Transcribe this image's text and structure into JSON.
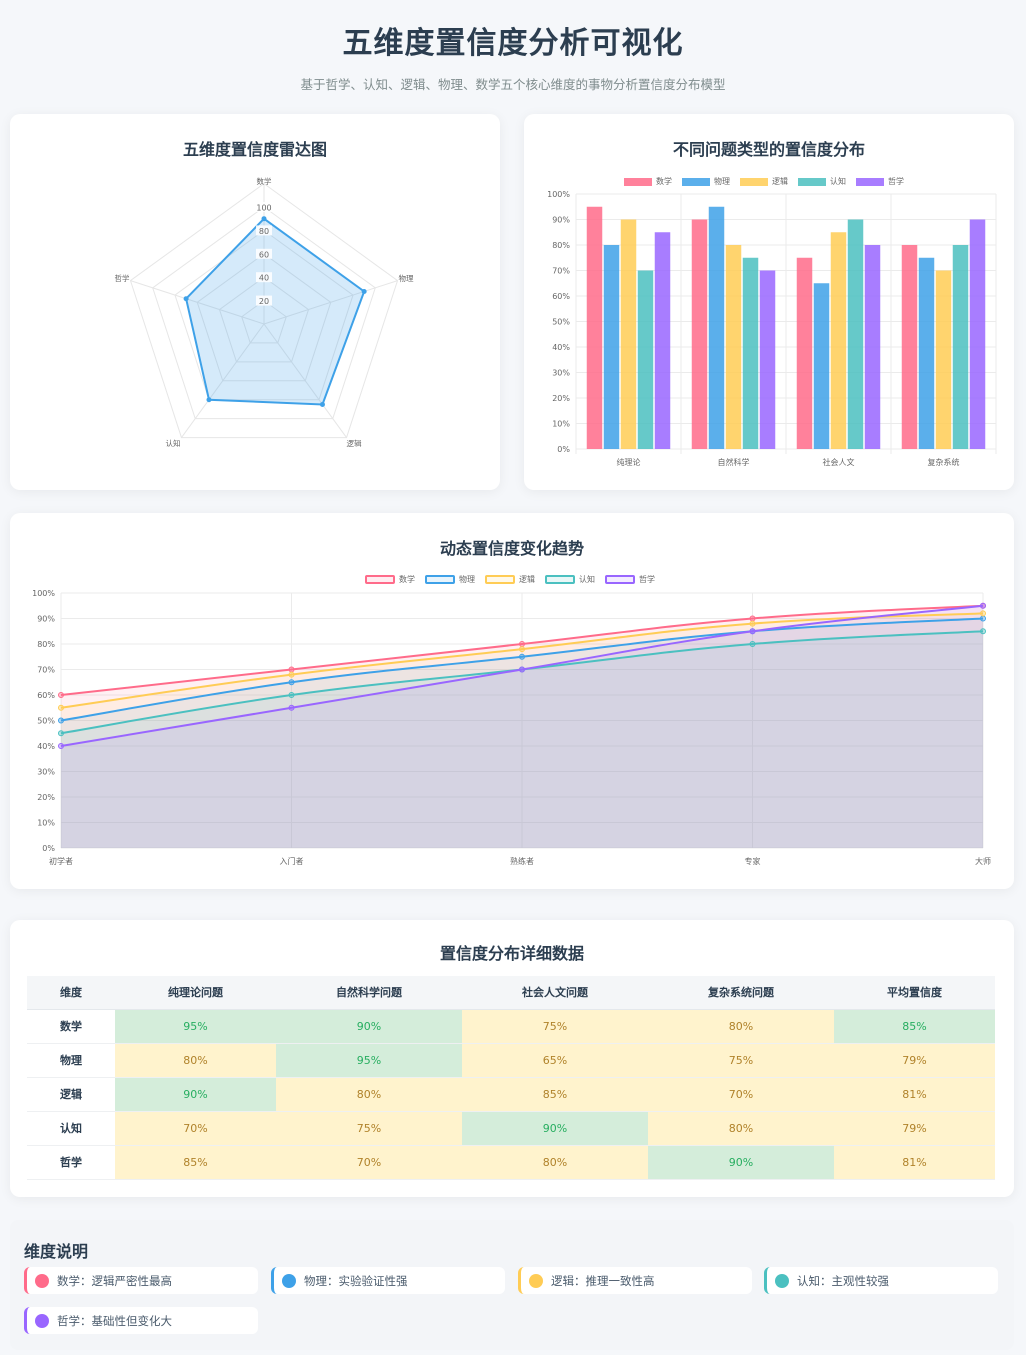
{
  "page": {
    "title": "五维度置信度分析可视化",
    "subtitle": "基于哲学、认知、逻辑、物理、数学五个核心维度的事物分析置信度分布模型"
  },
  "colors": {
    "数学": "#ff6b8a",
    "物理": "#3ea1e8",
    "逻辑": "#ffcc55",
    "认知": "#4bc0c0",
    "哲学": "#9966ff"
  },
  "radar": {
    "title": "五维度置信度雷达图",
    "axes": [
      "数学",
      "物理",
      "逻辑",
      "认知",
      "哲学"
    ],
    "ticks": [
      "20",
      "40",
      "60",
      "80",
      "100"
    ]
  },
  "bar": {
    "title": "不同问题类型的置信度分布",
    "legend": [
      "数学",
      "物理",
      "逻辑",
      "认知",
      "哲学"
    ],
    "categories": [
      "纯理论",
      "自然科学",
      "社会人文",
      "复杂系统"
    ],
    "yticks": [
      "0%",
      "10%",
      "20%",
      "30%",
      "40%",
      "50%",
      "60%",
      "70%",
      "80%",
      "90%",
      "100%"
    ]
  },
  "line": {
    "title": "动态置信度变化趋势",
    "legend": [
      "数学",
      "物理",
      "逻辑",
      "认知",
      "哲学"
    ],
    "x": [
      "初学者",
      "入门者",
      "熟练者",
      "专家",
      "大师"
    ],
    "yticks": [
      "0%",
      "10%",
      "20%",
      "30%",
      "40%",
      "50%",
      "60%",
      "70%",
      "80%",
      "90%",
      "100%"
    ]
  },
  "chart_data": [
    {
      "type": "radar",
      "title": "五维度置信度雷达图",
      "axes": [
        "数学",
        "物理",
        "逻辑",
        "认知",
        "哲学"
      ],
      "values": [
        90,
        90,
        85,
        80,
        70
      ],
      "range": [
        0,
        100
      ]
    },
    {
      "type": "bar",
      "title": "不同问题类型的置信度分布",
      "categories": [
        "纯理论",
        "自然科学",
        "社会人文",
        "复杂系统"
      ],
      "ylim": [
        0,
        100
      ],
      "series": [
        {
          "name": "数学",
          "values": [
            95,
            90,
            75,
            80
          ]
        },
        {
          "name": "物理",
          "values": [
            80,
            95,
            65,
            75
          ]
        },
        {
          "name": "逻辑",
          "values": [
            90,
            80,
            85,
            70
          ]
        },
        {
          "name": "认知",
          "values": [
            70,
            75,
            90,
            80
          ]
        },
        {
          "name": "哲学",
          "values": [
            85,
            70,
            80,
            90
          ]
        }
      ]
    },
    {
      "type": "area",
      "title": "动态置信度变化趋势",
      "x": [
        "初学者",
        "入门者",
        "熟练者",
        "专家",
        "大师"
      ],
      "ylim": [
        0,
        100
      ],
      "series": [
        {
          "name": "数学",
          "values": [
            60,
            70,
            80,
            90,
            95
          ]
        },
        {
          "name": "物理",
          "values": [
            50,
            65,
            75,
            85,
            90
          ]
        },
        {
          "name": "逻辑",
          "values": [
            55,
            68,
            78,
            88,
            92
          ]
        },
        {
          "name": "认知",
          "values": [
            45,
            60,
            70,
            80,
            85
          ]
        },
        {
          "name": "哲学",
          "values": [
            40,
            55,
            70,
            85,
            95
          ]
        }
      ]
    }
  ],
  "table": {
    "title": "置信度分布详细数据",
    "headers": [
      "维度",
      "纯理论问题",
      "自然科学问题",
      "社会人文问题",
      "复杂系统问题",
      "平均置信度"
    ],
    "rows": [
      {
        "dim": "数学",
        "cells": [
          "95%",
          "90%",
          "75%",
          "80%",
          "85%"
        ],
        "levels": [
          "high",
          "high",
          "mid",
          "mid",
          "high"
        ]
      },
      {
        "dim": "物理",
        "cells": [
          "80%",
          "95%",
          "65%",
          "75%",
          "79%"
        ],
        "levels": [
          "mid",
          "high",
          "mid",
          "mid",
          "mid"
        ]
      },
      {
        "dim": "逻辑",
        "cells": [
          "90%",
          "80%",
          "85%",
          "70%",
          "81%"
        ],
        "levels": [
          "high",
          "mid",
          "mid",
          "mid",
          "mid"
        ]
      },
      {
        "dim": "认知",
        "cells": [
          "70%",
          "75%",
          "90%",
          "80%",
          "79%"
        ],
        "levels": [
          "mid",
          "mid",
          "high",
          "mid",
          "mid"
        ]
      },
      {
        "dim": "哲学",
        "cells": [
          "85%",
          "70%",
          "80%",
          "90%",
          "81%"
        ],
        "levels": [
          "mid",
          "mid",
          "mid",
          "high",
          "mid"
        ]
      }
    ]
  },
  "description": {
    "title": "维度说明",
    "items": [
      {
        "name": "数学",
        "text": "数学：逻辑严密性最高"
      },
      {
        "name": "物理",
        "text": "物理：实验验证性强"
      },
      {
        "name": "逻辑",
        "text": "逻辑：推理一致性高"
      },
      {
        "name": "认知",
        "text": "认知：主观性较强"
      },
      {
        "name": "哲学",
        "text": "哲学：基础性但变化大"
      }
    ]
  }
}
